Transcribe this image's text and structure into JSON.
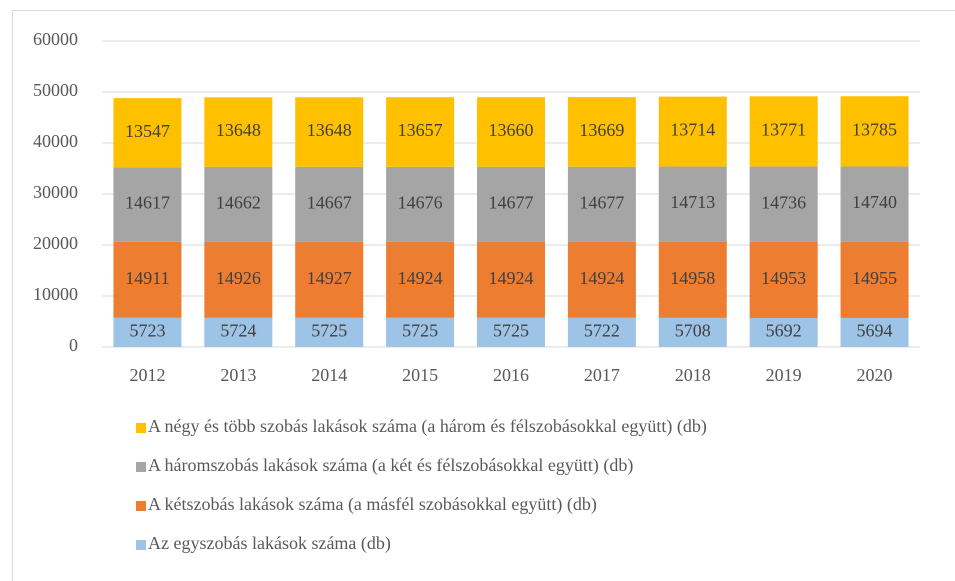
{
  "chart_data": {
    "type": "stacked_bar",
    "categories": [
      "2012",
      "2013",
      "2014",
      "2015",
      "2016",
      "2017",
      "2018",
      "2019",
      "2020"
    ],
    "series": [
      {
        "name": "Az egyszobás lakások száma (db)",
        "color": "#9dc3e6",
        "values": [
          5723,
          5724,
          5725,
          5725,
          5725,
          5722,
          5708,
          5692,
          5694
        ]
      },
      {
        "name": "A kétszobás lakások száma (a másfél szobásokkal együtt) (db)",
        "color": "#ed7d31",
        "values": [
          14911,
          14926,
          14927,
          14924,
          14924,
          14924,
          14958,
          14953,
          14955
        ]
      },
      {
        "name": "A háromszobás lakások száma (a két és félszobásokkal együtt) (db)",
        "color": "#a5a5a5",
        "values": [
          14617,
          14662,
          14667,
          14676,
          14677,
          14677,
          14713,
          14736,
          14740
        ]
      },
      {
        "name": "A négy és több szobás lakások száma (a három és félszobásokkal együtt) (db)",
        "color": "#ffc000",
        "values": [
          13547,
          13648,
          13648,
          13657,
          13660,
          13669,
          13714,
          13771,
          13785
        ]
      }
    ],
    "ylim": [
      0,
      60000
    ],
    "yticks": [
      0,
      10000,
      20000,
      30000,
      40000,
      50000,
      60000
    ],
    "grid": true
  }
}
